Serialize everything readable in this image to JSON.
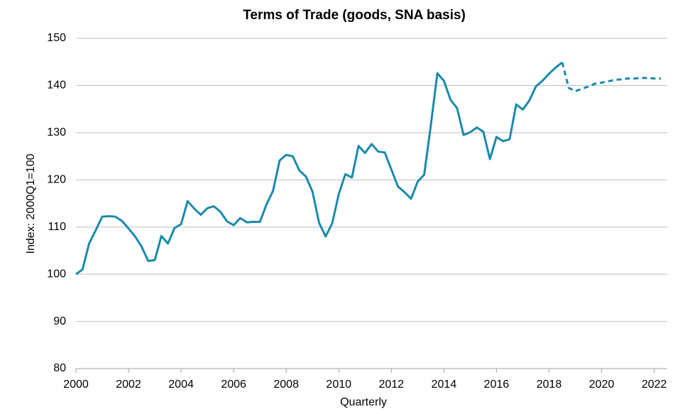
{
  "chart_data": {
    "type": "line",
    "title": "Terms of Trade (goods, SNA basis)",
    "y_label": "Index: 2000Q1=100",
    "x_label": "Quarterly",
    "xlim": [
      2000,
      2022.5
    ],
    "xticks": [
      2000,
      2002,
      2004,
      2006,
      2008,
      2010,
      2012,
      2014,
      2016,
      2018,
      2020,
      2022
    ],
    "ylim": [
      80,
      150
    ],
    "yticks": [
      80,
      90,
      100,
      110,
      120,
      130,
      140,
      150
    ],
    "grid": true,
    "series": [
      {
        "color": "#1a8aab",
        "dashed": false,
        "x": [
          2000,
          2000.25,
          2000.5,
          2000.75,
          2001,
          2001.25,
          2001.5,
          2001.75,
          2002,
          2002.25,
          2002.5,
          2002.75,
          2003,
          2003.25,
          2003.5,
          2003.75,
          2004,
          2004.25,
          2004.5,
          2004.75,
          2005,
          2005.25,
          2005.5,
          2005.75,
          2006,
          2006.25,
          2006.5,
          2006.75,
          2007,
          2007.25,
          2007.5,
          2007.75,
          2008,
          2008.25,
          2008.5,
          2008.75,
          2009,
          2009.25,
          2009.5,
          2009.75,
          2010,
          2010.25,
          2010.5,
          2010.75,
          2011,
          2011.25,
          2011.5,
          2011.75,
          2012,
          2012.25,
          2012.5,
          2012.75,
          2013,
          2013.25,
          2013.5,
          2013.75,
          2014,
          2014.25,
          2014.5,
          2014.75,
          2015,
          2015.25,
          2015.5,
          2015.75,
          2016,
          2016.25,
          2016.5,
          2016.75,
          2017,
          2017.25,
          2017.5,
          2017.75,
          2018,
          2018.25,
          2018.5
        ],
        "values": [
          100,
          101,
          106.5,
          109.3,
          112.2,
          112.3,
          112.2,
          111.3,
          109.7,
          108,
          105.8,
          102.8,
          103,
          108.1,
          106.5,
          109.8,
          110.6,
          115.5,
          113.9,
          112.6,
          114,
          114.4,
          113.2,
          111.2,
          110.4,
          111.9,
          111,
          111.1,
          111.1,
          114.8,
          117.7,
          124.1,
          125.3,
          125,
          122,
          120.7,
          117.5,
          110.9,
          108,
          110.8,
          117,
          121.2,
          120.5,
          127.2,
          125.7,
          127.6,
          126,
          125.8,
          122.2,
          118.6,
          117.4,
          116,
          119.6,
          121.1,
          131.5,
          142.6,
          141,
          137,
          135.2,
          129.5,
          130.1,
          131.1,
          130.2,
          124.4,
          129.1,
          128.2,
          128.6,
          136,
          134.9,
          136.8,
          139.8,
          141,
          142.5,
          143.8,
          144.9
        ]
      },
      {
        "color": "#1a8aab",
        "dashed": true,
        "x": [
          2018.5,
          2018.75,
          2019,
          2019.25,
          2019.5,
          2019.75,
          2020,
          2020.25,
          2020.5,
          2020.75,
          2021,
          2021.25,
          2021.5,
          2021.75,
          2022,
          2022.25
        ],
        "values": [
          144.9,
          139.5,
          138.8,
          139.3,
          139.8,
          140.4,
          140.6,
          140.9,
          141.2,
          141.3,
          141.5,
          141.5,
          141.6,
          141.6,
          141.5,
          141.5
        ]
      }
    ]
  }
}
